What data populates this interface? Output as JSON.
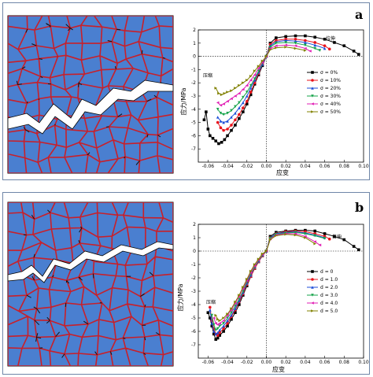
{
  "panels": [
    {
      "letter": "a",
      "annot_compress": "压缩",
      "annot_tension": "拉伸",
      "xlabel": "应变",
      "ylabel": "应力/MPa",
      "legend_param": "σ"
    },
    {
      "letter": "b",
      "annot_compress": "压缩",
      "annot_tension": "拉伸",
      "xlabel": "应变",
      "ylabel": "应力/MPa",
      "legend_param": "d"
    }
  ],
  "chart_data": [
    {
      "type": "line",
      "xlabel": "应变",
      "ylabel": "应力/MPa",
      "xlim": [
        -0.07,
        0.1
      ],
      "ylim": [
        -8,
        2
      ],
      "xticks": [
        "-0.06",
        "-0.04",
        "-0.02",
        "0.00",
        "0.02",
        "0.04",
        "0.06",
        "0.08",
        "0.10"
      ],
      "yticks": [
        "2",
        "1",
        "0",
        "-1",
        "-2",
        "-3",
        "-4",
        "-5",
        "-6",
        "-7"
      ],
      "legend_position": "right",
      "series": [
        {
          "name": "σ = 0%",
          "color": "#000000",
          "marker": "square",
          "x": [
            -0.064,
            -0.062,
            -0.06,
            -0.058,
            -0.055,
            -0.052,
            -0.049,
            -0.046,
            -0.043,
            -0.04,
            -0.036,
            -0.032,
            -0.028,
            -0.024,
            -0.02,
            -0.016,
            -0.012,
            -0.008,
            -0.004,
            0,
            0.004,
            0.01,
            0.02,
            0.03,
            0.04,
            0.05,
            0.06,
            0.07,
            0.08,
            0.09,
            0.095
          ],
          "y": [
            -4.8,
            -4.2,
            -5.5,
            -6.0,
            -6.2,
            -6.4,
            -6.6,
            -6.5,
            -6.3,
            -6.0,
            -5.6,
            -5.2,
            -4.7,
            -4.2,
            -3.6,
            -2.9,
            -2.1,
            -1.4,
            -0.7,
            0,
            1.0,
            1.4,
            1.5,
            1.55,
            1.55,
            1.45,
            1.3,
            1.05,
            0.8,
            0.4,
            0.15
          ]
        },
        {
          "name": "σ = 10%",
          "color": "#e8141c",
          "marker": "circle",
          "x": [
            -0.05,
            -0.047,
            -0.044,
            -0.04,
            -0.036,
            -0.032,
            -0.028,
            -0.024,
            -0.02,
            -0.016,
            -0.012,
            -0.008,
            -0.004,
            0,
            0.004,
            0.01,
            0.02,
            0.03,
            0.04,
            0.05,
            0.06,
            0.065
          ],
          "y": [
            -5.0,
            -5.4,
            -5.6,
            -5.5,
            -5.2,
            -4.8,
            -4.4,
            -3.9,
            -3.4,
            -2.7,
            -2.0,
            -1.3,
            -0.6,
            0,
            0.9,
            1.2,
            1.3,
            1.3,
            1.2,
            1.05,
            0.8,
            0.55
          ]
        },
        {
          "name": "σ = 20%",
          "color": "#1c4ed8",
          "marker": "triangle-up",
          "x": [
            -0.05,
            -0.047,
            -0.044,
            -0.04,
            -0.036,
            -0.032,
            -0.028,
            -0.024,
            -0.02,
            -0.016,
            -0.012,
            -0.008,
            -0.004,
            0,
            0.004,
            0.01,
            0.02,
            0.03,
            0.04,
            0.05,
            0.06
          ],
          "y": [
            -4.6,
            -4.9,
            -5.0,
            -4.9,
            -4.6,
            -4.3,
            -3.9,
            -3.5,
            -3.0,
            -2.4,
            -1.8,
            -1.2,
            -0.6,
            0,
            0.8,
            1.1,
            1.2,
            1.15,
            1.05,
            0.85,
            0.6
          ]
        },
        {
          "name": "σ = 30%",
          "color": "#16a34a",
          "marker": "triangle-down",
          "x": [
            -0.05,
            -0.047,
            -0.044,
            -0.04,
            -0.036,
            -0.032,
            -0.028,
            -0.024,
            -0.02,
            -0.016,
            -0.012,
            -0.008,
            -0.004,
            0,
            0.004,
            0.01,
            0.02,
            0.03,
            0.04,
            0.05,
            0.055
          ],
          "y": [
            -4.0,
            -4.3,
            -4.4,
            -4.3,
            -4.1,
            -3.8,
            -3.5,
            -3.1,
            -2.7,
            -2.2,
            -1.7,
            -1.1,
            -0.5,
            0,
            0.7,
            1.0,
            1.05,
            1.0,
            0.85,
            0.6,
            0.45
          ]
        },
        {
          "name": "σ = 40%",
          "color": "#e11db4",
          "marker": "triangle-left",
          "x": [
            -0.05,
            -0.047,
            -0.044,
            -0.04,
            -0.036,
            -0.032,
            -0.028,
            -0.024,
            -0.02,
            -0.016,
            -0.012,
            -0.008,
            -0.004,
            0,
            0.004,
            0.01,
            0.02,
            0.03,
            0.04,
            0.045
          ],
          "y": [
            -3.5,
            -3.7,
            -3.6,
            -3.4,
            -3.2,
            -3.0,
            -2.8,
            -2.5,
            -2.2,
            -1.8,
            -1.4,
            -0.9,
            -0.45,
            0,
            0.6,
            0.8,
            0.85,
            0.8,
            0.6,
            0.4
          ]
        },
        {
          "name": "σ = 50%",
          "color": "#808000",
          "marker": "triangle-right",
          "x": [
            -0.052,
            -0.049,
            -0.046,
            -0.043,
            -0.04,
            -0.036,
            -0.032,
            -0.028,
            -0.024,
            -0.02,
            -0.016,
            -0.012,
            -0.008,
            -0.004,
            0,
            0.004,
            0.01,
            0.02,
            0.03,
            0.04
          ],
          "y": [
            -2.4,
            -2.8,
            -2.9,
            -2.8,
            -2.7,
            -2.6,
            -2.4,
            -2.2,
            -2.0,
            -1.8,
            -1.5,
            -1.1,
            -0.75,
            -0.35,
            0,
            0.5,
            0.65,
            0.7,
            0.6,
            0.45
          ]
        }
      ]
    },
    {
      "type": "line",
      "xlabel": "应变",
      "ylabel": "应力/MPa",
      "xlim": [
        -0.07,
        0.1
      ],
      "ylim": [
        -8,
        2
      ],
      "xticks": [
        "-0.06",
        "-0.04",
        "-0.02",
        "0.00",
        "0.02",
        "0.04",
        "0.06",
        "0.08",
        "0.10"
      ],
      "yticks": [
        "2",
        "1",
        "0",
        "-1",
        "-2",
        "-3",
        "-4",
        "-5",
        "-6",
        "-7"
      ],
      "legend_position": "right",
      "series": [
        {
          "name": "d = 0",
          "color": "#000000",
          "marker": "square",
          "x": [
            -0.06,
            -0.058,
            -0.056,
            -0.054,
            -0.052,
            -0.05,
            -0.048,
            -0.044,
            -0.04,
            -0.036,
            -0.032,
            -0.028,
            -0.024,
            -0.02,
            -0.016,
            -0.012,
            -0.008,
            -0.004,
            0,
            0.004,
            0.01,
            0.02,
            0.03,
            0.04,
            0.05,
            0.06,
            0.07,
            0.08,
            0.09,
            0.095
          ],
          "y": [
            -4.6,
            -5.0,
            -5.6,
            -6.2,
            -6.6,
            -6.5,
            -6.3,
            -6.0,
            -5.6,
            -5.1,
            -4.6,
            -4.0,
            -3.3,
            -2.6,
            -1.9,
            -1.3,
            -0.8,
            -0.35,
            0,
            1.1,
            1.4,
            1.5,
            1.55,
            1.55,
            1.5,
            1.3,
            1.1,
            0.85,
            0.35,
            0.1
          ]
        },
        {
          "name": "d = 1.0",
          "color": "#e8141c",
          "marker": "circle",
          "x": [
            -0.058,
            -0.056,
            -0.054,
            -0.052,
            -0.05,
            -0.048,
            -0.044,
            -0.04,
            -0.036,
            -0.032,
            -0.028,
            -0.024,
            -0.02,
            -0.016,
            -0.012,
            -0.008,
            -0.004,
            0,
            0.004,
            0.01,
            0.02,
            0.03,
            0.04,
            0.05,
            0.06,
            0.065
          ],
          "y": [
            -4.2,
            -5.2,
            -5.8,
            -6.2,
            -6.3,
            -6.1,
            -5.8,
            -5.4,
            -4.9,
            -4.4,
            -3.8,
            -3.2,
            -2.5,
            -1.9,
            -1.3,
            -0.8,
            -0.35,
            0,
            1.0,
            1.3,
            1.45,
            1.5,
            1.45,
            1.3,
            1.1,
            0.9
          ]
        },
        {
          "name": "d = 2.0",
          "color": "#1c4ed8",
          "marker": "triangle-up",
          "x": [
            -0.058,
            -0.056,
            -0.054,
            -0.052,
            -0.05,
            -0.048,
            -0.044,
            -0.04,
            -0.036,
            -0.032,
            -0.028,
            -0.024,
            -0.02,
            -0.016,
            -0.012,
            -0.008,
            -0.004,
            0,
            0.004,
            0.01,
            0.02,
            0.03,
            0.04,
            0.05,
            0.06
          ],
          "y": [
            -4.4,
            -5.4,
            -6.0,
            -6.2,
            -6.1,
            -5.9,
            -5.6,
            -5.2,
            -4.8,
            -4.3,
            -3.7,
            -3.1,
            -2.4,
            -1.8,
            -1.2,
            -0.75,
            -0.3,
            0,
            1.0,
            1.3,
            1.4,
            1.45,
            1.35,
            1.2,
            1.0
          ]
        },
        {
          "name": "d = 3.0",
          "color": "#16a34a",
          "marker": "triangle-down",
          "x": [
            -0.056,
            -0.054,
            -0.052,
            -0.05,
            -0.048,
            -0.044,
            -0.04,
            -0.036,
            -0.032,
            -0.028,
            -0.024,
            -0.02,
            -0.016,
            -0.012,
            -0.008,
            -0.004,
            0,
            0.004,
            0.01,
            0.02,
            0.03,
            0.04,
            0.05,
            0.06
          ],
          "y": [
            -4.8,
            -5.5,
            -5.9,
            -5.8,
            -5.6,
            -5.4,
            -5.0,
            -4.6,
            -4.1,
            -3.6,
            -3.0,
            -2.3,
            -1.7,
            -1.2,
            -0.7,
            -0.3,
            0,
            0.95,
            1.25,
            1.35,
            1.4,
            1.3,
            1.15,
            0.95
          ]
        },
        {
          "name": "d = 4.0",
          "color": "#e11db4",
          "marker": "triangle-left",
          "x": [
            -0.054,
            -0.052,
            -0.05,
            -0.048,
            -0.044,
            -0.04,
            -0.036,
            -0.032,
            -0.028,
            -0.024,
            -0.02,
            -0.016,
            -0.012,
            -0.008,
            -0.004,
            0,
            0.004,
            0.01,
            0.02,
            0.03,
            0.04,
            0.05,
            0.055
          ],
          "y": [
            -5.0,
            -5.4,
            -5.5,
            -5.4,
            -5.2,
            -4.8,
            -4.4,
            -3.9,
            -3.4,
            -2.8,
            -2.2,
            -1.6,
            -1.1,
            -0.65,
            -0.25,
            0,
            0.9,
            1.2,
            1.3,
            1.3,
            1.1,
            0.7,
            0.45
          ]
        },
        {
          "name": "d = 5.0",
          "color": "#808000",
          "marker": "triangle-right",
          "x": [
            -0.052,
            -0.05,
            -0.048,
            -0.044,
            -0.04,
            -0.036,
            -0.032,
            -0.028,
            -0.024,
            -0.02,
            -0.016,
            -0.012,
            -0.008,
            -0.004,
            0,
            0.004,
            0.01,
            0.02,
            0.03,
            0.04,
            0.05
          ],
          "y": [
            -4.8,
            -5.1,
            -5.2,
            -5.0,
            -4.7,
            -4.3,
            -3.8,
            -3.3,
            -2.7,
            -2.1,
            -1.5,
            -1.0,
            -0.6,
            -0.2,
            0,
            0.85,
            1.15,
            1.25,
            1.2,
            1.0,
            0.55
          ]
        }
      ]
    }
  ]
}
